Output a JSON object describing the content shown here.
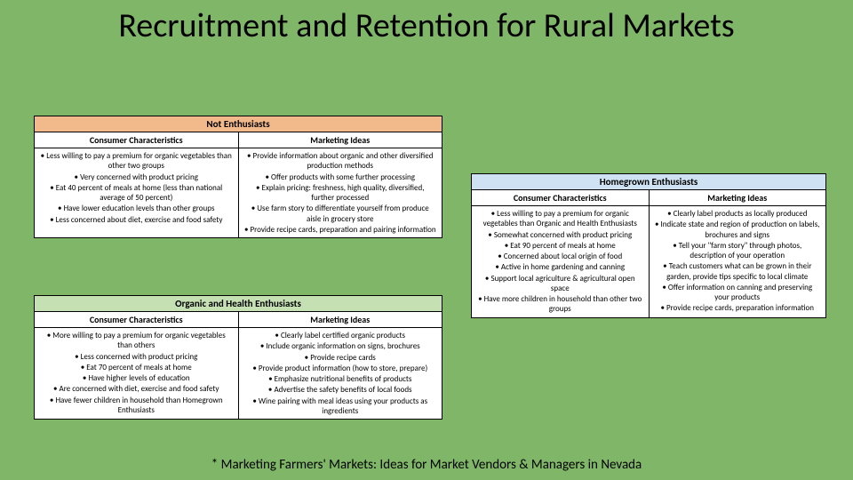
{
  "title": "Recruitment and Retention for Rural Markets",
  "footnote": "* Marketing Farmers' Markets: Ideas for Market Vendors & Managers in Nevada",
  "tables": {
    "not_enthusiasts": {
      "title": "Not Enthusiasts",
      "col1_header": "Consumer Characteristics",
      "col2_header": "Marketing Ideas",
      "col1_items": [
        "Less willing to pay a premium for organic vegetables than other two groups",
        "Very concerned with product pricing",
        "Eat 40 percent of meals at home (less than national average of 50 percent)",
        "Have lower education levels than other groups",
        "Less concerned about diet, exercise and food safety"
      ],
      "col2_items": [
        "Provide information about organic and other diversified production methods",
        "Offer products with some further processing",
        "Explain pricing: freshness, high quality, diversified, further processed",
        "Use farm story to differentiate yourself from produce aisle in grocery store",
        "Provide recipe cards, preparation and pairing information"
      ]
    },
    "organic_health": {
      "title": "Organic and Health Enthusiasts",
      "col1_header": "Consumer Characteristics",
      "col2_header": "Marketing Ideas",
      "col1_items": [
        "More willing to pay a premium for organic vegetables than others",
        "Less concerned with product pricing",
        "Eat 70 percent of meals at home",
        "Have higher levels of education",
        "Are concerned with diet, exercise and food safety",
        "Have fewer children in household than Homegrown Enthusiasts"
      ],
      "col2_items": [
        "Clearly label certified organic products",
        "Include organic information on signs, brochures",
        "Provide recipe cards",
        "Provide product information (how to store, prepare)",
        "Emphasize nutritional benefits of products",
        "Advertise the safety benefits of local foods",
        "Wine pairing with meal ideas using your products as ingredients"
      ]
    },
    "homegrown": {
      "title": "Homegrown Enthusiasts",
      "col1_header": "Consumer Characteristics",
      "col2_header": "Marketing Ideas",
      "col1_items": [
        "Less willing to pay a premium for organic vegetables than Organic and Health Enthusiasts",
        "Somewhat concerned with product pricing",
        "Eat 90 percent of meals at home",
        "Concerned about local origin of food",
        "Active in home gardening and canning",
        "Support local agriculture & agricultural open space",
        "Have more children in household than other two groups"
      ],
      "col2_items": [
        "Clearly label products as locally produced",
        "Indicate state and region of production on labels, brochures and signs",
        "Tell your \"farm story\" through photos, description of your operation",
        "Teach customers what can be grown in their garden, provide tips specific to local climate",
        "Offer information on canning and preserving your products",
        "Provide recipe cards, preparation information"
      ]
    }
  },
  "colors": {
    "background": "#7fb668",
    "not_enthusiasts_header": "#f2b98a",
    "organic_health_header": "#c5e0b3",
    "homegrown_header": "#cfe2f3",
    "border": "#000000",
    "text": "#000000"
  }
}
